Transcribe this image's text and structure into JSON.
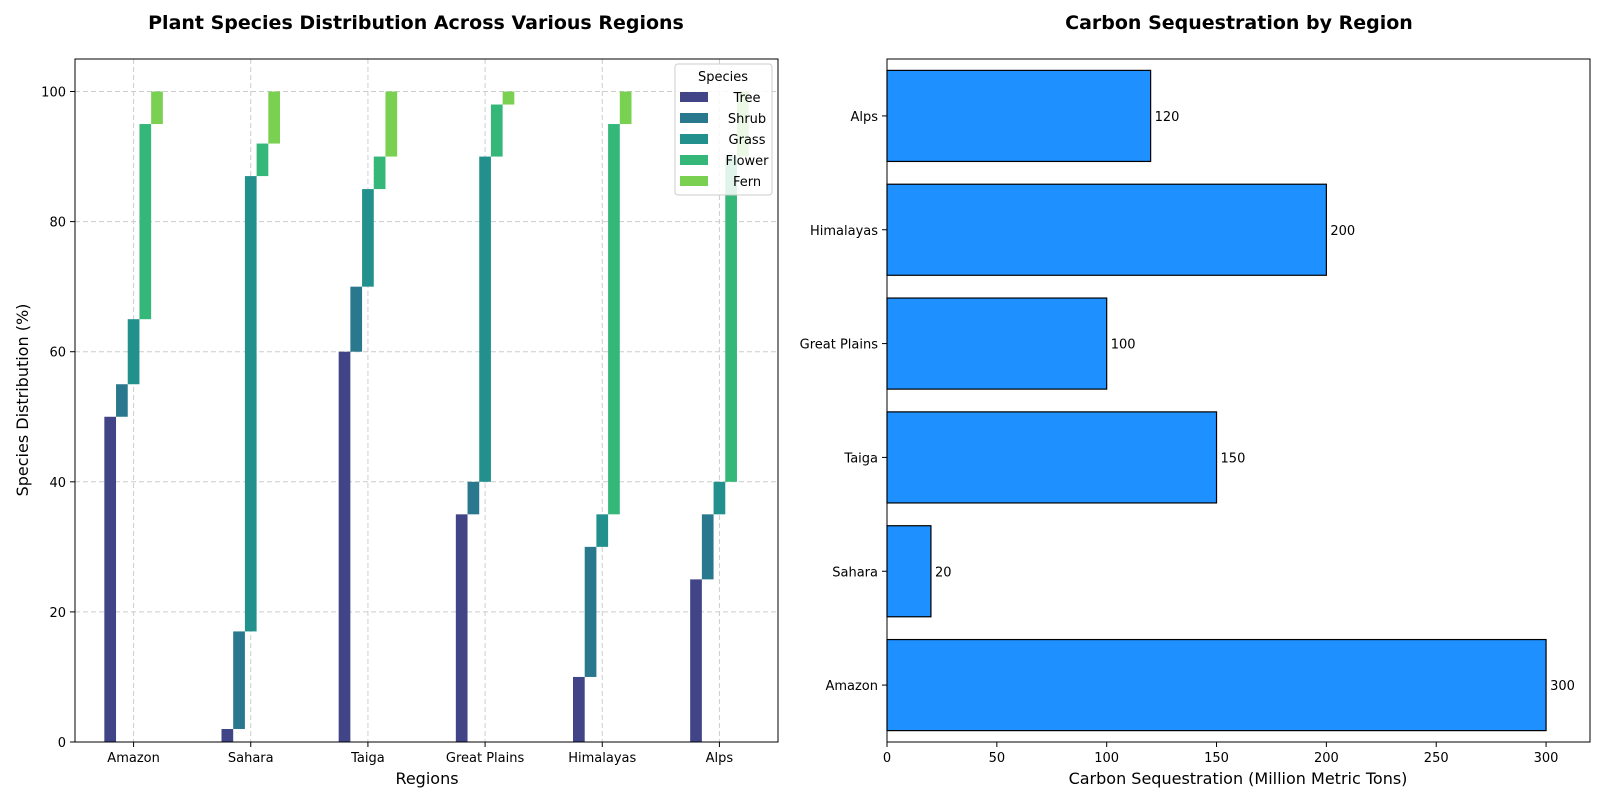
{
  "chart_data": [
    {
      "type": "bar",
      "subtype": "stacked-stepped",
      "title": "Plant Species Distribution Across Various Regions",
      "xlabel": "Regions",
      "ylabel": "Species Distribution (%)",
      "categories": [
        "Amazon",
        "Sahara",
        "Taiga",
        "Great Plains",
        "Himalayas",
        "Alps"
      ],
      "ylim": [
        0,
        105
      ],
      "yticks": [
        0,
        20,
        40,
        60,
        80,
        100
      ],
      "grid": true,
      "legend": {
        "title": "Species",
        "placement": "top-right"
      },
      "series": [
        {
          "name": "Tree",
          "color": "#414487",
          "values": [
            50,
            2,
            60,
            35,
            10,
            25
          ]
        },
        {
          "name": "Shrub",
          "color": "#2a788e",
          "values": [
            5,
            15,
            10,
            5,
            20,
            10
          ]
        },
        {
          "name": "Grass",
          "color": "#22908c",
          "values": [
            10,
            70,
            15,
            50,
            5,
            5
          ]
        },
        {
          "name": "Flower",
          "color": "#35b779",
          "values": [
            30,
            5,
            5,
            8,
            60,
            50
          ]
        },
        {
          "name": "Fern",
          "color": "#7ad151",
          "values": [
            5,
            8,
            10,
            2,
            5,
            10
          ]
        }
      ]
    },
    {
      "type": "bar",
      "orientation": "horizontal",
      "title": "Carbon Sequestration by Region",
      "xlabel": "Carbon Sequestration (Million Metric Tons)",
      "ylabel": "",
      "categories": [
        "Amazon",
        "Sahara",
        "Taiga",
        "Great Plains",
        "Himalayas",
        "Alps"
      ],
      "values": [
        300,
        20,
        150,
        100,
        200,
        120
      ],
      "labels": [
        "300",
        "20",
        "150",
        "100",
        "200",
        "120"
      ],
      "xlim": [
        0,
        320
      ],
      "xticks": [
        0,
        50,
        100,
        150,
        200,
        250,
        300
      ],
      "bar_color": "#1e90ff",
      "edge_color": "#000000",
      "grid": false
    }
  ]
}
